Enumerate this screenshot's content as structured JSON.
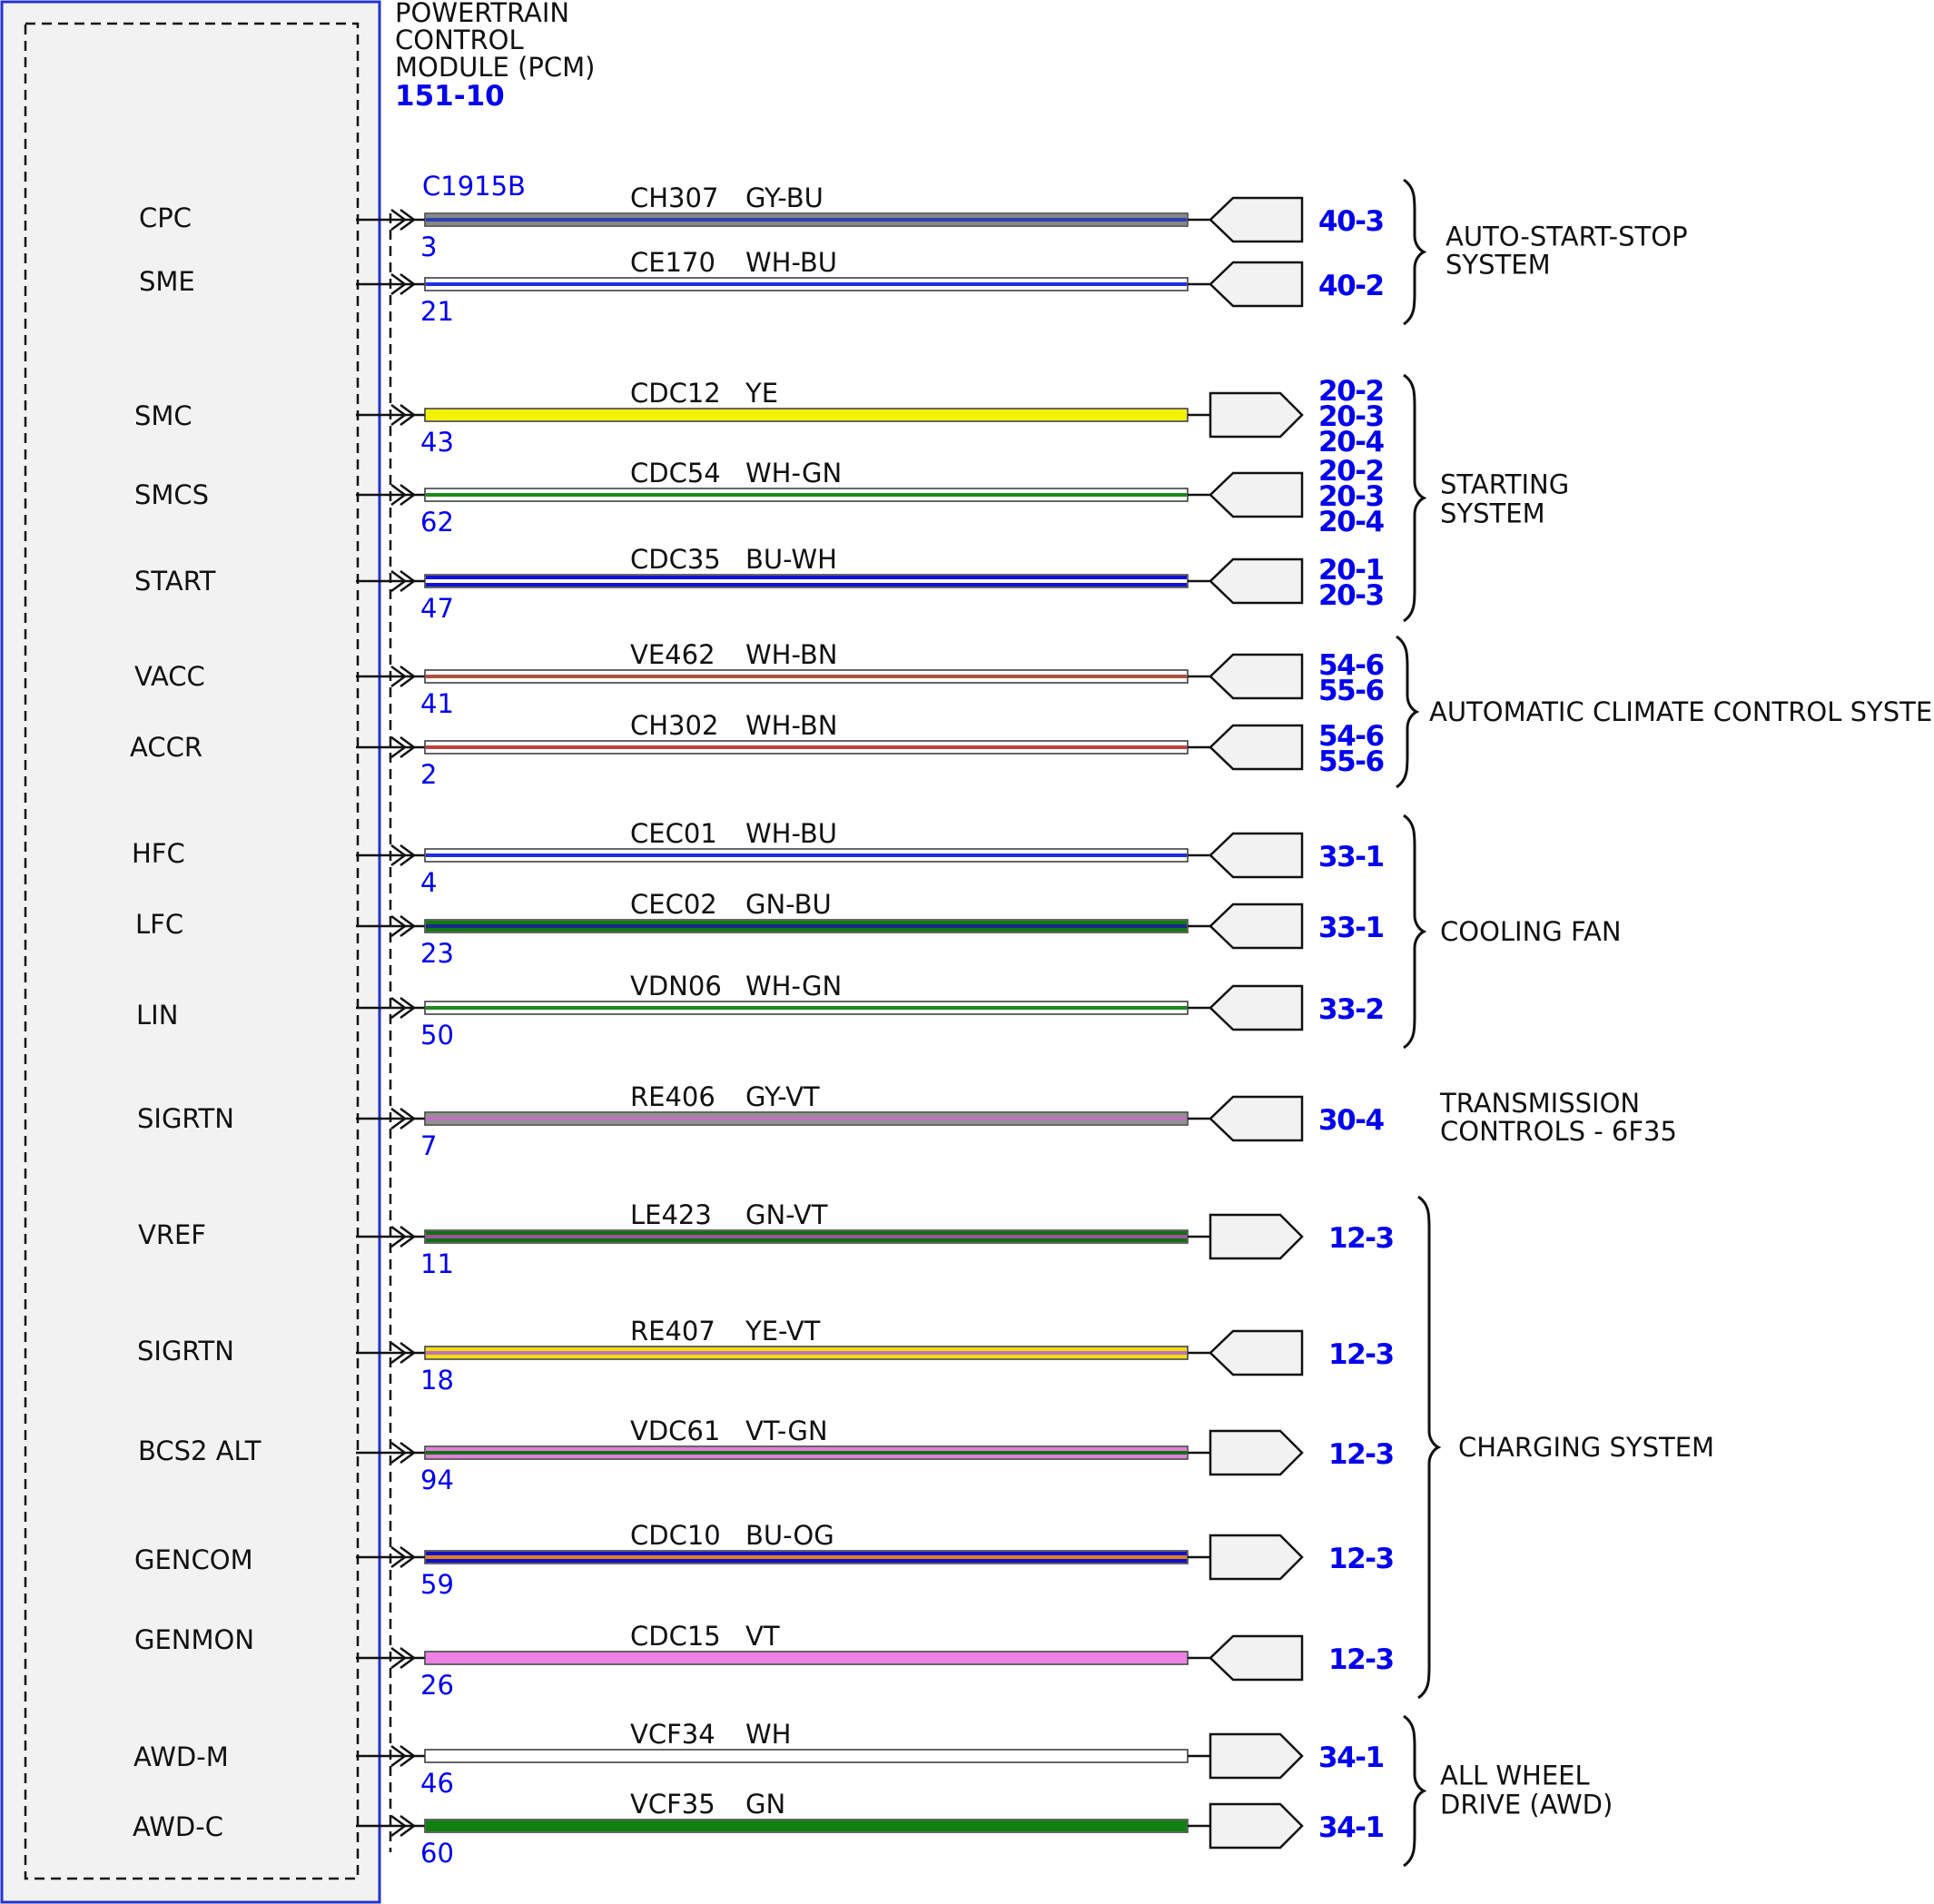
{
  "module": {
    "title_lines": [
      "POWERTRAIN",
      "CONTROL",
      "MODULE (PCM)"
    ],
    "ref": "151-10",
    "connector": "C1915B"
  },
  "circuits": [
    {
      "signal": "CPC",
      "pin": "3",
      "circuit": "CH307",
      "color": "GY-BU",
      "colors": [
        "#888888",
        "#2a3fb0"
      ],
      "refs": [
        "40-3"
      ],
      "dir": "in"
    },
    {
      "signal": "SME",
      "pin": "21",
      "circuit": "CE170",
      "color": "WH-BU",
      "colors": [
        "#ffffff",
        "#1f2fe0"
      ],
      "refs": [
        "40-2"
      ],
      "dir": "in"
    },
    {
      "signal": "SMC",
      "pin": "43",
      "circuit": "CDC12",
      "color": "YE",
      "colors": [
        "#f2f200"
      ],
      "refs": [
        "20-2",
        "20-3",
        "20-4"
      ],
      "dir": "out"
    },
    {
      "signal": "SMCS",
      "pin": "62",
      "circuit": "CDC54",
      "color": "WH-GN",
      "colors": [
        "#ffffff",
        "#1a8a1a"
      ],
      "refs": [
        "20-2",
        "20-3",
        "20-4"
      ],
      "dir": "in"
    },
    {
      "signal": "START",
      "pin": "47",
      "circuit": "CDC35",
      "color": "BU-WH",
      "colors": [
        "#1010d8",
        "#ffffff"
      ],
      "refs": [
        "20-1",
        "20-3"
      ],
      "dir": "in"
    },
    {
      "signal": "VACC",
      "pin": "41",
      "circuit": "VE462",
      "color": "WH-BN",
      "colors": [
        "#ffffff",
        "#b05040"
      ],
      "refs": [
        "54-6",
        "55-6"
      ],
      "dir": "in"
    },
    {
      "signal": "ACCR",
      "pin": "2",
      "circuit": "CH302",
      "color": "WH-BN",
      "colors": [
        "#ffffff",
        "#c04040"
      ],
      "refs": [
        "54-6",
        "55-6"
      ],
      "dir": "in"
    },
    {
      "signal": "HFC",
      "pin": "4",
      "circuit": "CEC01",
      "color": "WH-BU",
      "colors": [
        "#ffffff",
        "#1f2fe0"
      ],
      "refs": [
        "33-1"
      ],
      "dir": "in"
    },
    {
      "signal": "LFC",
      "pin": "23",
      "circuit": "CEC02",
      "color": "GN-BU",
      "colors": [
        "#127a12",
        "#1a2a8a"
      ],
      "refs": [
        "33-1"
      ],
      "dir": "in"
    },
    {
      "signal": "LIN",
      "pin": "50",
      "circuit": "VDN06",
      "color": "WH-GN",
      "colors": [
        "#ffffff",
        "#1a8a1a"
      ],
      "refs": [
        "33-2"
      ],
      "dir": "in"
    },
    {
      "signal": "SIGRTN",
      "pin": "7",
      "circuit": "RE406",
      "color": "GY-VT",
      "colors": [
        "#909090",
        "#c070c0"
      ],
      "refs": [
        "30-4"
      ],
      "dir": "in"
    },
    {
      "signal": "VREF",
      "pin": "11",
      "circuit": "LE423",
      "color": "GN-VT",
      "colors": [
        "#107010",
        "#a050a0"
      ],
      "refs": [
        "12-3"
      ],
      "dir": "out"
    },
    {
      "signal": "SIGRTN",
      "pin": "18",
      "circuit": "RE407",
      "color": "YE-VT",
      "colors": [
        "#f2e000",
        "#c070c0"
      ],
      "refs": [
        "12-3"
      ],
      "dir": "in"
    },
    {
      "signal": "BCS2 ALT",
      "pin": "94",
      "circuit": "VDC61",
      "color": "VT-GN",
      "colors": [
        "#e080d8",
        "#107010"
      ],
      "refs": [
        "12-3"
      ],
      "dir": "out"
    },
    {
      "signal": "GENCOM",
      "pin": "59",
      "circuit": "CDC10",
      "color": "BU-OG",
      "colors": [
        "#1010c8",
        "#e08020"
      ],
      "refs": [
        "12-3"
      ],
      "dir": "out"
    },
    {
      "signal": "GENMON",
      "pin": "26",
      "circuit": "CDC15",
      "color": "VT",
      "colors": [
        "#ee80e6"
      ],
      "refs": [
        "12-3"
      ],
      "dir": "in"
    },
    {
      "signal": "AWD-M",
      "pin": "46",
      "circuit": "VCF34",
      "color": "WH",
      "colors": [
        "#ffffff"
      ],
      "refs": [
        "34-1"
      ],
      "dir": "out"
    },
    {
      "signal": "AWD-C",
      "pin": "60",
      "circuit": "VCF35",
      "color": "GN",
      "colors": [
        "#108010"
      ],
      "refs": [
        "34-1"
      ],
      "dir": "out"
    }
  ],
  "systems": [
    {
      "lines": [
        "AUTO-START-STOP",
        "SYSTEM"
      ],
      "from": 0,
      "to": 1
    },
    {
      "lines": [
        "STARTING",
        "SYSTEM"
      ],
      "from": 2,
      "to": 4
    },
    {
      "lines": [
        "AUTOMATIC CLIMATE CONTROL SYSTEM"
      ],
      "from": 5,
      "to": 6
    },
    {
      "lines": [
        "COOLING FAN"
      ],
      "from": 7,
      "to": 9
    },
    {
      "lines": [
        "TRANSMISSION",
        "CONTROLS - 6F35"
      ],
      "from": 10,
      "to": 10
    },
    {
      "lines": [
        "CHARGING SYSTEM"
      ],
      "from": 11,
      "to": 15
    },
    {
      "lines": [
        "ALL WHEEL",
        "DRIVE (AWD)"
      ],
      "from": 16,
      "to": 17
    }
  ]
}
